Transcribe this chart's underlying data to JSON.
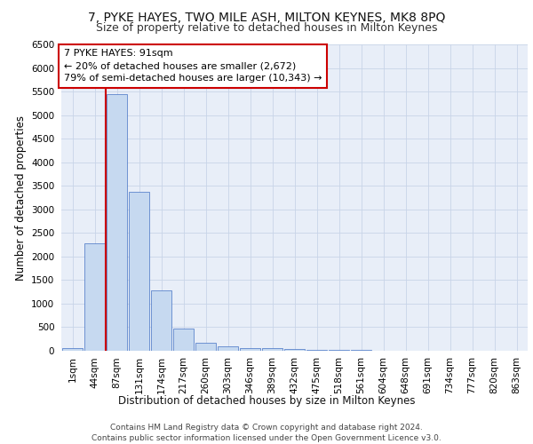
{
  "title1": "7, PYKE HAYES, TWO MILE ASH, MILTON KEYNES, MK8 8PQ",
  "title2": "Size of property relative to detached houses in Milton Keynes",
  "xlabel": "Distribution of detached houses by size in Milton Keynes",
  "ylabel": "Number of detached properties",
  "footnote1": "Contains HM Land Registry data © Crown copyright and database right 2024.",
  "footnote2": "Contains public sector information licensed under the Open Government Licence v3.0.",
  "annotation_line1": "7 PYKE HAYES: 91sqm",
  "annotation_line2": "← 20% of detached houses are smaller (2,672)",
  "annotation_line3": "79% of semi-detached houses are larger (10,343) →",
  "bar_labels": [
    "1sqm",
    "44sqm",
    "87sqm",
    "131sqm",
    "174sqm",
    "217sqm",
    "260sqm",
    "303sqm",
    "346sqm",
    "389sqm",
    "432sqm",
    "475sqm",
    "518sqm",
    "561sqm",
    "604sqm",
    "648sqm",
    "691sqm",
    "734sqm",
    "777sqm",
    "820sqm",
    "863sqm"
  ],
  "bar_values": [
    60,
    2280,
    5440,
    3380,
    1290,
    480,
    165,
    95,
    65,
    50,
    30,
    20,
    15,
    10,
    5,
    5,
    3,
    2,
    2,
    1,
    1
  ],
  "bar_color": "#c6d9f0",
  "bar_edge_color": "#4472c4",
  "highlight_line_color": "#cc0000",
  "annotation_box_edge_color": "#cc0000",
  "annotation_box_face_color": "#ffffff",
  "ylim": [
    0,
    6500
  ],
  "yticks": [
    0,
    500,
    1000,
    1500,
    2000,
    2500,
    3000,
    3500,
    4000,
    4500,
    5000,
    5500,
    6000,
    6500
  ],
  "grid_color": "#c8d4e8",
  "background_color": "#e8eef8",
  "title1_fontsize": 10,
  "title2_fontsize": 9,
  "axis_label_fontsize": 8.5,
  "tick_fontsize": 7.5,
  "annotation_fontsize": 8,
  "footnote_fontsize": 6.5
}
